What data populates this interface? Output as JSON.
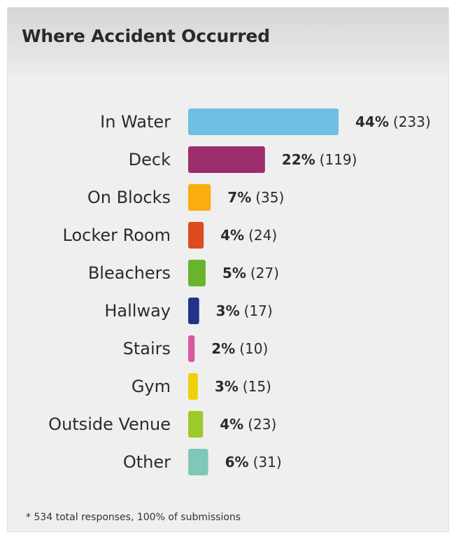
{
  "chart_data": {
    "type": "bar",
    "orientation": "horizontal",
    "title": "Where Accident Occurred",
    "categories": [
      "In Water",
      "Deck",
      "On Blocks",
      "Locker Room",
      "Bleachers",
      "Hallway",
      "Stairs",
      "Gym",
      "Outside Venue",
      "Other"
    ],
    "percent_labels": [
      "44%",
      "22%",
      "7%",
      "4%",
      "5%",
      "3%",
      "2%",
      "3%",
      "4%",
      "6%"
    ],
    "count_labels": [
      "(233)",
      "(119)",
      "(35)",
      "(24)",
      "(27)",
      "(17)",
      "(10)",
      "(15)",
      "(23)",
      "(31)"
    ],
    "values": [
      233,
      119,
      35,
      24,
      27,
      17,
      10,
      15,
      23,
      31
    ],
    "colors": [
      "#6ebfe2",
      "#9c2c6c",
      "#f9ad0f",
      "#dd4b1f",
      "#69b42d",
      "#21348a",
      "#d8599d",
      "#f0d108",
      "#9cca2b",
      "#7fc8b8"
    ],
    "footnote": "* 534 total responses, 100% of submissions"
  }
}
